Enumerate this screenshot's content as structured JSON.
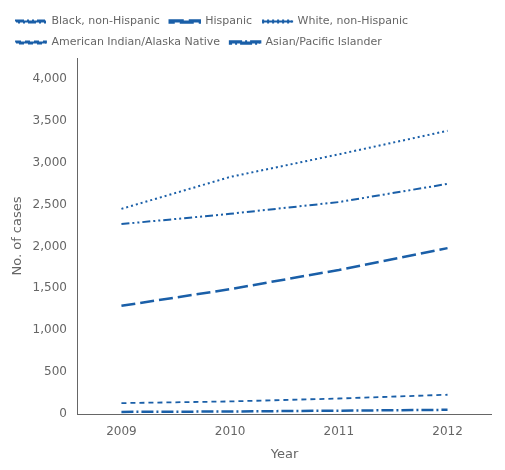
{
  "chart_data": {
    "type": "line",
    "x": [
      2009,
      2010,
      2011,
      2012
    ],
    "series": [
      {
        "name": "Black, non-Hispanic",
        "values": [
          2267,
          2390,
          2530,
          2747
        ],
        "line_style": "dash_dot_dot"
      },
      {
        "name": "Hispanic",
        "values": [
          1291,
          1490,
          1720,
          1980
        ],
        "line_style": "long_dash"
      },
      {
        "name": "White, non-Hispanic",
        "values": [
          2449,
          2830,
          3100,
          3381
        ],
        "line_style": "dotted"
      },
      {
        "name": "American Indian/Alaska Native",
        "values": [
          130,
          150,
          185,
          230
        ],
        "line_style": "dashed"
      },
      {
        "name": "Asian/Pacific Islander",
        "values": [
          25,
          30,
          40,
          50
        ],
        "line_style": "dash_dot"
      }
    ],
    "color": "#1a5fa8",
    "xlabel": "Year",
    "ylabel": "No. of cases",
    "xlim": [
      2008.6,
      2012.4
    ],
    "xticks": [
      2009,
      2010,
      2011,
      2012
    ],
    "ylim": [
      0,
      4250
    ],
    "yticks": [
      0,
      500,
      {
        "value": 1000,
        "label": "1,000"
      },
      {
        "value": 1500,
        "label": "1,500"
      },
      {
        "value": 2000,
        "label": "2,000"
      },
      {
        "value": 2500,
        "label": "2,500"
      },
      {
        "value": 3000,
        "label": "3,000"
      },
      {
        "value": 3500,
        "label": "3,500"
      },
      {
        "value": 4000,
        "label": "4,000"
      }
    ],
    "grid": false,
    "legend": "upper left"
  }
}
